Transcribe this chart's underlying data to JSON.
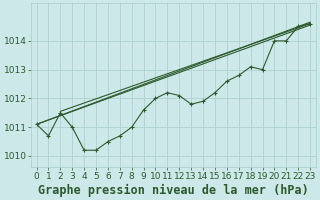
{
  "xlabel": "Graphe pression niveau de la mer (hPa)",
  "bg_color": "#cce8e8",
  "grid_color": "#aacccc",
  "line_color": "#2d5a2d",
  "text_color": "#2d5a2d",
  "xlim": [
    -0.5,
    23.5
  ],
  "ylim": [
    1009.6,
    1015.3
  ],
  "yticks": [
    1010,
    1011,
    1012,
    1013,
    1014
  ],
  "xticks": [
    0,
    1,
    2,
    3,
    4,
    5,
    6,
    7,
    8,
    9,
    10,
    11,
    12,
    13,
    14,
    15,
    16,
    17,
    18,
    19,
    20,
    21,
    22,
    23
  ],
  "main_line_x": [
    0,
    1,
    2,
    3,
    4,
    5,
    6,
    7,
    8,
    9,
    10,
    11,
    12,
    13,
    14,
    15,
    16,
    17,
    18,
    19,
    20,
    21,
    22,
    23
  ],
  "main_line_y": [
    1011.1,
    1010.7,
    1011.5,
    1011.0,
    1010.2,
    1010.2,
    1010.5,
    1010.7,
    1011.0,
    1011.6,
    1012.0,
    1012.2,
    1012.1,
    1011.8,
    1011.9,
    1012.2,
    1012.6,
    1012.8,
    1013.1,
    1013.0,
    1014.0,
    1014.0,
    1014.5,
    1014.6
  ],
  "trend_lines": [
    {
      "x": [
        0,
        23
      ],
      "y": [
        1011.1,
        1014.65
      ]
    },
    {
      "x": [
        0,
        23
      ],
      "y": [
        1011.1,
        1014.55
      ]
    },
    {
      "x": [
        2,
        23
      ],
      "y": [
        1011.55,
        1014.6
      ]
    }
  ],
  "tick_fontsize": 6.5,
  "xlabel_fontsize": 8.5
}
